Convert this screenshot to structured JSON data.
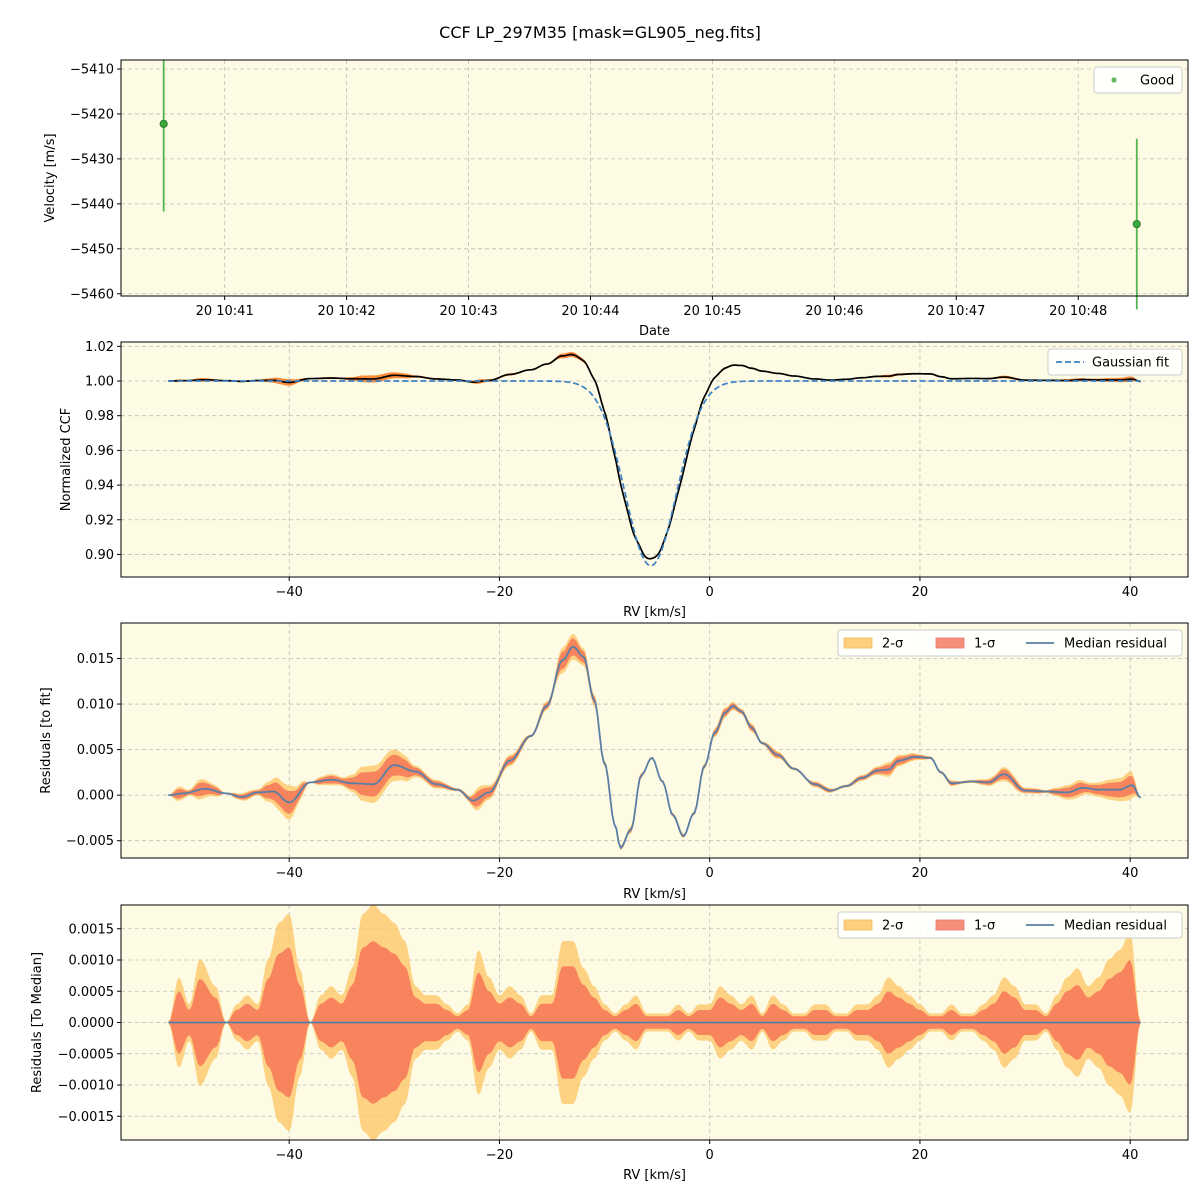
{
  "figure": {
    "title": "CCF LP_297M35 [mask=GL905_neg.fits]"
  },
  "colors": {
    "panel_bg": "#fdfbe3",
    "good": "#3aa83a",
    "gaussian": "#3b82c4",
    "ccf": "#000000",
    "band_ccf": "#ff7f2a",
    "two_sigma": "#fcc86a",
    "one_sigma": "#f46a50",
    "median": "#5a7fa6"
  },
  "chart_data": [
    {
      "type": "scatter",
      "id": "velocity",
      "xlabel": "Date",
      "ylabel": "Velocity [m/s]",
      "xlim": [
        40.15,
        48.9
      ],
      "ylim": [
        -5460.5,
        -5408
      ],
      "x_unit": "minutes after 10:00 on day 20",
      "xticks": [
        41,
        42,
        43,
        44,
        45,
        46,
        47,
        48
      ],
      "xtick_labels": [
        "20 10:41",
        "20 10:42",
        "20 10:43",
        "20 10:44",
        "20 10:45",
        "20 10:46",
        "20 10:47",
        "20 10:48"
      ],
      "yticks": [
        -5410,
        -5420,
        -5430,
        -5440,
        -5450,
        -5460
      ],
      "ytick_labels": [
        "−5410",
        "−5420",
        "−5430",
        "−5440",
        "−5450",
        "−5460"
      ],
      "legend": {
        "label": "Good",
        "position": "top-right"
      },
      "points": [
        {
          "x": 40.5,
          "y": -5422.2,
          "err": 19.5
        },
        {
          "x": 48.48,
          "y": -5444.5,
          "err": 19.0
        }
      ]
    },
    {
      "type": "line",
      "id": "ccf",
      "xlabel": "RV [km/s]",
      "ylabel": "Normalized CCF",
      "xlim": [
        -56,
        45.5
      ],
      "ylim": [
        0.887,
        1.0225
      ],
      "xticks": [
        -40,
        -20,
        0,
        20,
        40
      ],
      "xtick_labels": [
        "−40",
        "−20",
        "0",
        "20",
        "40"
      ],
      "yticks": [
        0.9,
        0.92,
        0.94,
        0.96,
        0.98,
        1.0,
        1.02
      ],
      "ytick_labels": [
        "0.90",
        "0.92",
        "0.94",
        "0.96",
        "0.98",
        "1.00",
        "1.02"
      ],
      "legend": {
        "label": "Gaussian fit",
        "position": "top-right"
      },
      "gaussian": {
        "center": -5.6,
        "depth": 0.1065,
        "sigma": 2.45,
        "baseline": 1.0,
        "x_range": [
          -51.5,
          41
        ]
      }
    },
    {
      "type": "area",
      "id": "residuals-fit",
      "xlabel": "RV [km/s]",
      "ylabel": "Residuals [to fit]",
      "xlim": [
        -56,
        45.5
      ],
      "ylim": [
        -0.0069,
        0.0189
      ],
      "xticks": [
        -40,
        -20,
        0,
        20,
        40
      ],
      "xtick_labels": [
        "−40",
        "−20",
        "0",
        "20",
        "40"
      ],
      "yticks": [
        -0.005,
        0.0,
        0.005,
        0.01,
        0.015
      ],
      "ytick_labels": [
        "−0.005",
        "0.000",
        "0.005",
        "0.010",
        "0.015"
      ],
      "legend": {
        "labels": [
          "2-σ",
          "1-σ",
          "Median residual"
        ],
        "position": "top-right"
      },
      "series": [
        {
          "name": "Median residual",
          "x": [
            -51.5,
            -50,
            -48,
            -46,
            -44.5,
            -43,
            -41.5,
            -40,
            -38,
            -36,
            -34,
            -32,
            -30,
            -28,
            -26,
            -24,
            -22.5,
            -21,
            -19,
            -17,
            -15.5,
            -14,
            -13,
            -12,
            -11,
            -10,
            -9,
            -8.5,
            -7.5,
            -6.5,
            -5.5,
            -4.5,
            -3.5,
            -2.5,
            -1.5,
            -0.5,
            0.5,
            1.5,
            2.2,
            3,
            4,
            5,
            6.5,
            8,
            10,
            11.5,
            13,
            14.5,
            16,
            17,
            18,
            19.5,
            21,
            22,
            23,
            25,
            26.5,
            28,
            30,
            32,
            34,
            35.5,
            37,
            39,
            40.2,
            41
          ],
          "y": [
            0.0,
            0.0002,
            0.0007,
            0.0002,
            -0.0002,
            0.0003,
            0.0004,
            -0.0008,
            0.0014,
            0.0017,
            0.0013,
            0.0012,
            0.0033,
            0.0026,
            0.0012,
            0.0006,
            -0.0006,
            0.0003,
            0.0038,
            0.0065,
            0.0098,
            0.0148,
            0.0163,
            0.0152,
            0.0105,
            0.0035,
            -0.0033,
            -0.0058,
            -0.0038,
            0.0022,
            0.0041,
            0.0015,
            -0.0022,
            -0.0045,
            -0.002,
            0.0032,
            0.0069,
            0.0091,
            0.0098,
            0.0092,
            0.0074,
            0.0057,
            0.0044,
            0.0029,
            0.0012,
            0.0005,
            0.001,
            0.0019,
            0.0027,
            0.0028,
            0.0038,
            0.0042,
            0.0041,
            0.0025,
            0.0013,
            0.0015,
            0.0014,
            0.0023,
            0.0005,
            0.0004,
            0.0003,
            0.0008,
            0.0006,
            0.0006,
            0.0011,
            -0.0003
          ]
        }
      ]
    },
    {
      "type": "area",
      "id": "residuals-median",
      "xlabel": "RV [km/s]",
      "ylabel": "Residuals [To Median]",
      "xlim": [
        -56,
        45.5
      ],
      "ylim": [
        -0.00188,
        0.00188
      ],
      "xticks": [
        -40,
        -20,
        0,
        20,
        40
      ],
      "xtick_labels": [
        "−40",
        "−20",
        "0",
        "20",
        "40"
      ],
      "yticks": [
        -0.0015,
        -0.001,
        -0.0005,
        0.0,
        0.0005,
        0.001,
        0.0015
      ],
      "ytick_labels": [
        "−0.0015",
        "−0.0010",
        "−0.0005",
        "0.0000",
        "0.0005",
        "0.0010",
        "0.0015"
      ],
      "legend": {
        "labels": [
          "2-σ",
          "1-σ",
          "Median residual"
        ],
        "position": "top-right"
      },
      "envelope": {
        "x": [
          -51.5,
          -50.5,
          -49.5,
          -48.5,
          -47,
          -46,
          -45,
          -44,
          -43,
          -42,
          -41,
          -40,
          -39,
          -38,
          -37,
          -36,
          -35,
          -34,
          -33,
          -32,
          -31,
          -30,
          -29,
          -28,
          -27,
          -26,
          -25,
          -24,
          -23,
          -22,
          -21,
          -20,
          -19,
          -18,
          -17,
          -16,
          -15,
          -14,
          -13,
          -12,
          -11,
          -10,
          -9,
          -8,
          -7,
          -6,
          -5,
          -4,
          -3,
          -2,
          -1,
          0,
          1,
          2,
          3,
          4,
          5,
          6,
          7,
          8,
          9,
          10,
          11,
          12,
          13,
          14,
          15,
          16,
          17,
          18,
          19,
          20,
          21,
          22,
          23,
          24,
          25,
          26,
          27,
          28,
          29,
          30,
          31,
          32,
          33,
          34,
          35,
          36,
          37,
          38,
          39,
          40,
          41
        ],
        "one_sigma": [
          0.0,
          0.0005,
          0.0002,
          0.0007,
          0.0004,
          0.0,
          0.0002,
          0.0003,
          0.0002,
          0.0007,
          0.0011,
          0.0012,
          0.0006,
          0.0,
          0.0003,
          0.0004,
          0.0003,
          0.0006,
          0.0012,
          0.0013,
          0.0012,
          0.0011,
          0.0009,
          0.0004,
          0.0003,
          0.0003,
          0.0002,
          0.0001,
          0.0002,
          0.0008,
          0.0005,
          0.0003,
          0.0004,
          0.0003,
          0.0001,
          0.0003,
          0.0003,
          0.0009,
          0.0009,
          0.0006,
          0.0004,
          0.0002,
          0.0001,
          0.0002,
          0.0003,
          0.0001,
          0.0001,
          0.0001,
          0.0002,
          0.0001,
          0.0002,
          0.0002,
          0.0004,
          0.0003,
          0.0002,
          0.0003,
          0.0001,
          0.0003,
          0.0002,
          0.0001,
          0.0001,
          0.0002,
          0.0002,
          0.0001,
          0.0001,
          0.0002,
          0.0002,
          0.0003,
          0.0005,
          0.0004,
          0.0003,
          0.0002,
          0.0001,
          0.0001,
          0.0002,
          0.0001,
          0.0001,
          0.0002,
          0.0003,
          0.0005,
          0.0004,
          0.0002,
          0.0002,
          0.0001,
          0.0003,
          0.0005,
          0.0006,
          0.0004,
          0.0005,
          0.0007,
          0.0008,
          0.001,
          0.0
        ]
      },
      "series": [
        {
          "name": "Median residual",
          "value": 0.0
        }
      ]
    }
  ]
}
